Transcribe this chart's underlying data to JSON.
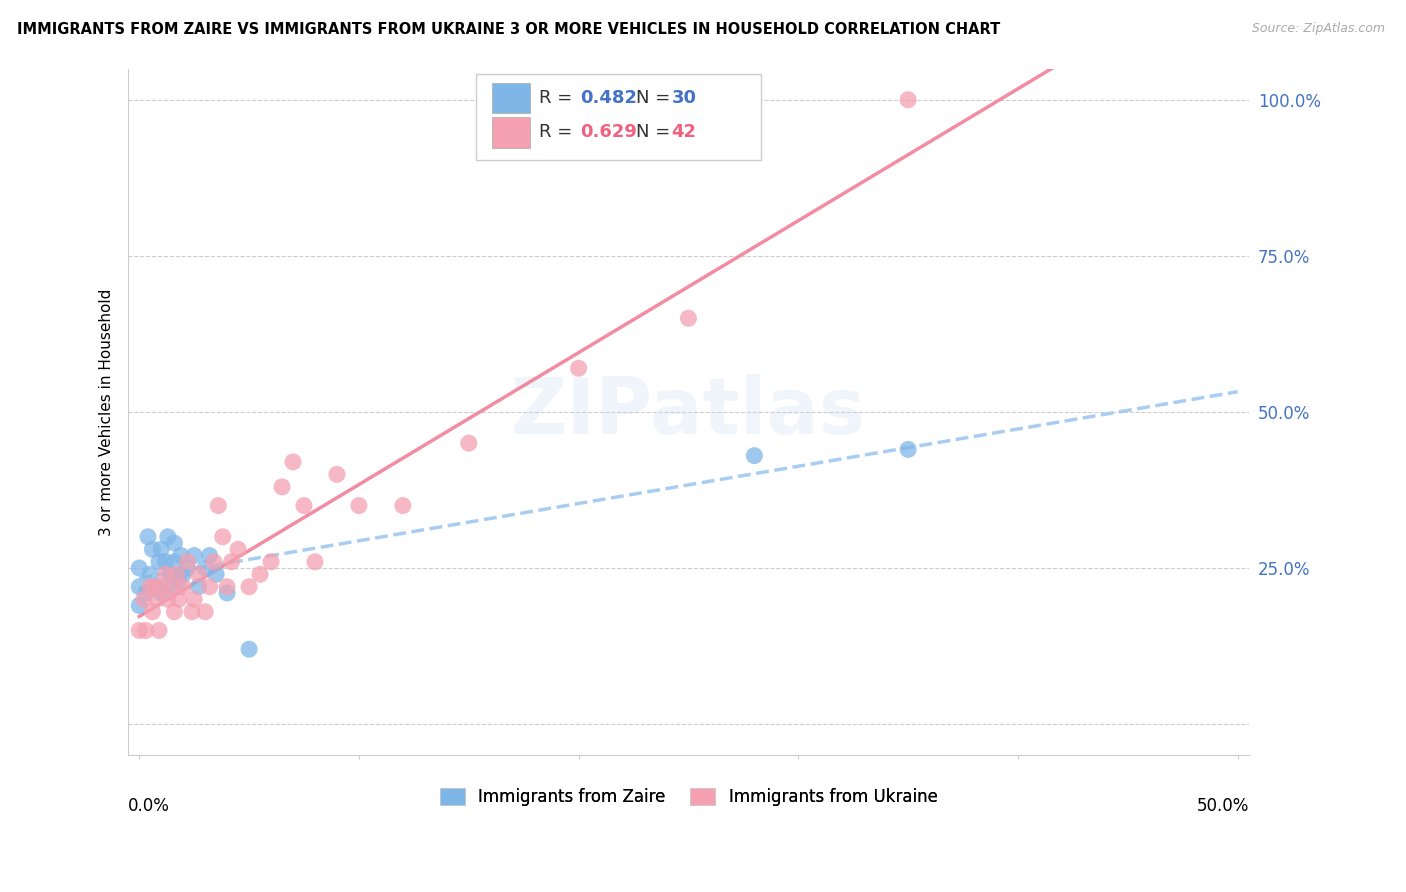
{
  "title": "IMMIGRANTS FROM ZAIRE VS IMMIGRANTS FROM UKRAINE 3 OR MORE VEHICLES IN HOUSEHOLD CORRELATION CHART",
  "source": "Source: ZipAtlas.com",
  "ylabel": "3 or more Vehicles in Household",
  "xlim": [
    -0.005,
    0.505
  ],
  "ylim": [
    -0.05,
    1.05
  ],
  "zaire_R": 0.482,
  "zaire_N": 30,
  "ukraine_R": 0.629,
  "ukraine_N": 42,
  "zaire_color": "#7EB6E8",
  "ukraine_color": "#F4A0B0",
  "zaire_line_color": "#A0C8F0",
  "ukraine_line_color": "#F08098",
  "watermark": "ZIPatlas",
  "zaire_points_x": [
    0.0,
    0.0,
    0.0,
    0.003,
    0.004,
    0.005,
    0.006,
    0.008,
    0.009,
    0.01,
    0.01,
    0.012,
    0.013,
    0.014,
    0.015,
    0.016,
    0.016,
    0.018,
    0.019,
    0.02,
    0.022,
    0.025,
    0.027,
    0.03,
    0.032,
    0.035,
    0.04,
    0.05,
    0.28,
    0.35
  ],
  "zaire_points_y": [
    0.19,
    0.22,
    0.25,
    0.21,
    0.3,
    0.24,
    0.28,
    0.22,
    0.26,
    0.21,
    0.28,
    0.26,
    0.3,
    0.24,
    0.22,
    0.26,
    0.29,
    0.23,
    0.27,
    0.24,
    0.25,
    0.27,
    0.22,
    0.25,
    0.27,
    0.24,
    0.21,
    0.12,
    0.43,
    0.44
  ],
  "ukraine_points_x": [
    0.0,
    0.002,
    0.003,
    0.005,
    0.006,
    0.007,
    0.008,
    0.009,
    0.01,
    0.012,
    0.013,
    0.015,
    0.016,
    0.017,
    0.018,
    0.02,
    0.022,
    0.024,
    0.025,
    0.027,
    0.03,
    0.032,
    0.034,
    0.036,
    0.038,
    0.04,
    0.042,
    0.045,
    0.05,
    0.055,
    0.06,
    0.065,
    0.07,
    0.075,
    0.08,
    0.09,
    0.1,
    0.12,
    0.15,
    0.2,
    0.25,
    0.35
  ],
  "ukraine_points_y": [
    0.15,
    0.2,
    0.15,
    0.22,
    0.18,
    0.22,
    0.2,
    0.15,
    0.22,
    0.24,
    0.2,
    0.22,
    0.18,
    0.24,
    0.2,
    0.22,
    0.26,
    0.18,
    0.2,
    0.24,
    0.18,
    0.22,
    0.26,
    0.35,
    0.3,
    0.22,
    0.26,
    0.28,
    0.22,
    0.24,
    0.26,
    0.38,
    0.42,
    0.35,
    0.26,
    0.4,
    0.35,
    0.35,
    0.45,
    0.57,
    0.65,
    1.0
  ]
}
